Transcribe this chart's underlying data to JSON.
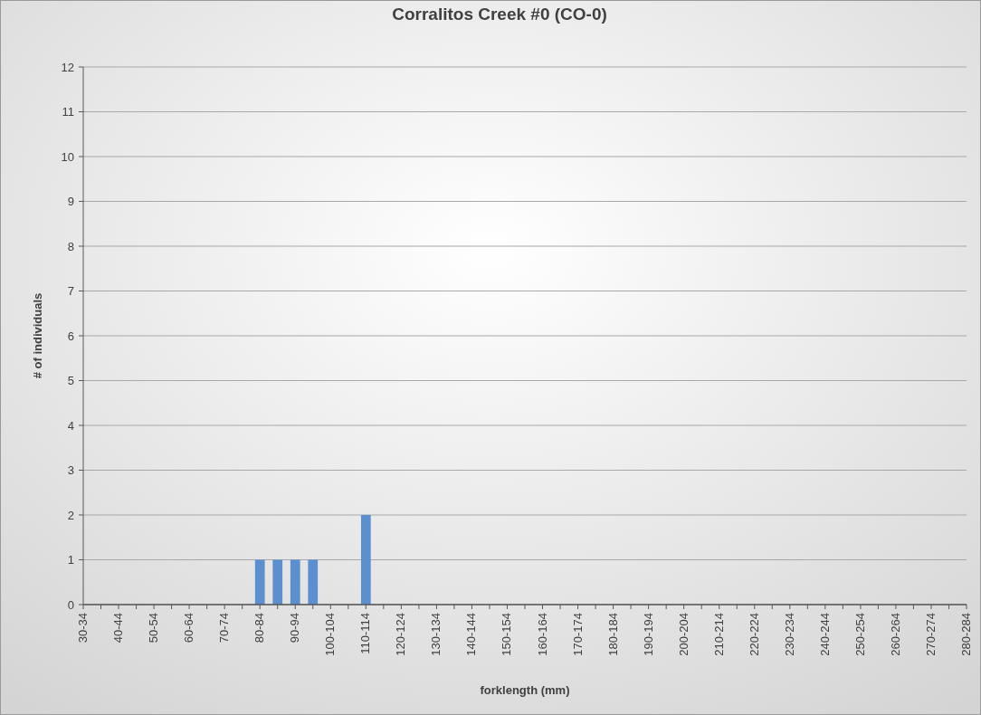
{
  "chart_data": {
    "type": "bar",
    "title": "Corralitos Creek #0 (CO-0)",
    "xlabel": "forklength (mm)",
    "ylabel": "# of individuals",
    "categories": [
      "30-34",
      null,
      "40-44",
      null,
      "50-54",
      null,
      "60-64",
      null,
      "70-74",
      null,
      "80-84",
      null,
      "90-94",
      null,
      "100-104",
      null,
      "110-114",
      null,
      "120-124",
      null,
      "130-134",
      null,
      "140-144",
      null,
      "150-154",
      null,
      "160-164",
      null,
      "170-174",
      null,
      "180-184",
      null,
      "190-194",
      null,
      "200-204",
      null,
      "210-214",
      null,
      "220-224",
      null,
      "230-234",
      null,
      "240-244",
      null,
      "250-254",
      null,
      "260-264",
      null,
      "270-274",
      null,
      "280-284"
    ],
    "values": [
      0,
      0,
      0,
      0,
      0,
      0,
      0,
      0,
      0,
      0,
      1,
      1,
      1,
      1,
      0,
      0,
      2,
      0,
      0,
      0,
      0,
      0,
      0,
      0,
      0,
      0,
      0,
      0,
      0,
      0,
      0,
      0,
      0,
      0,
      0,
      0,
      0,
      0,
      0,
      0,
      0,
      0,
      0,
      0,
      0,
      0,
      0,
      0,
      0,
      0,
      0
    ],
    "color": "#5b8fd0",
    "ylim": [
      0,
      12
    ],
    "yticks": [
      0,
      1,
      2,
      3,
      4,
      5,
      6,
      7,
      8,
      9,
      10,
      11,
      12
    ],
    "grid": "y"
  }
}
